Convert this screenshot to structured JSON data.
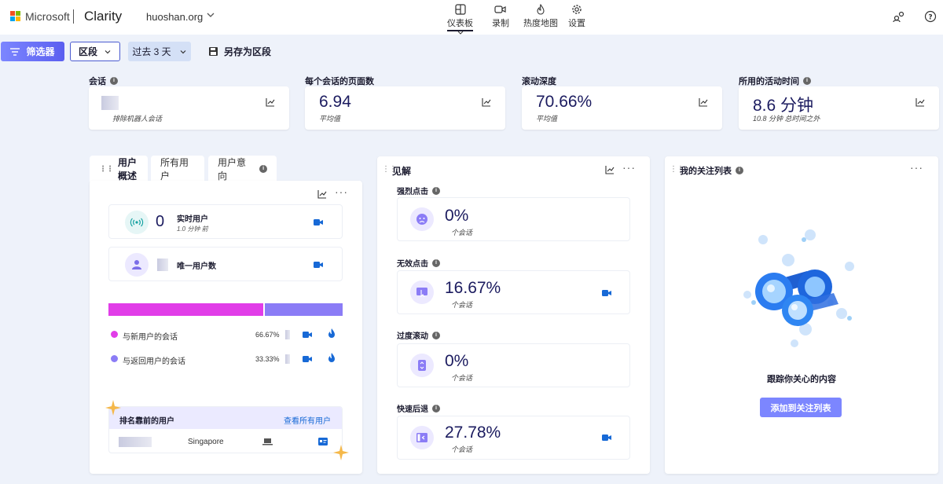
{
  "header": {
    "brand": "Microsoft",
    "product": "Clarity",
    "site": "huoshan.org",
    "nav": [
      {
        "label": "仪表板",
        "icon": "dashboard-icon"
      },
      {
        "label": "录制",
        "icon": "video-icon"
      },
      {
        "label": "热度地图",
        "icon": "flame-icon"
      },
      {
        "label": "设置",
        "icon": "gear-icon"
      }
    ],
    "logo_colors": [
      "#f25022",
      "#7fba00",
      "#00a4ef",
      "#ffb900"
    ]
  },
  "toolbar": {
    "filter_label": "筛选器",
    "segment_label": "区段",
    "range_label": "过去 3 天",
    "save_label": "另存为区段"
  },
  "metrics": [
    {
      "label": "会话",
      "value": "",
      "sub": "排除机器人会话"
    },
    {
      "label": "每个会话的页面数",
      "value": "6.94",
      "sub": "平均值"
    },
    {
      "label": "滚动深度",
      "value": "70.66%",
      "sub": "平均值"
    },
    {
      "label": "所用的活动时间",
      "value": "8.6 分钟",
      "sub": "10.8 分钟 总时间之外"
    }
  ],
  "users_panel": {
    "tabs": [
      "用户概述",
      "所有用户",
      "用户意向"
    ],
    "live_count": "0",
    "live_label": "实时用户",
    "live_time": "1.0 分钟 前",
    "unique_label": "唯一用户数",
    "new_label": "与新用户的会话",
    "new_pct": "66.67%",
    "new_share": 66.67,
    "return_label": "与返回用户的会话",
    "return_pct": "33.33%",
    "top_label": "排名靠前的用户",
    "view_all": "查看所有用户",
    "top_country": "Singapore",
    "colors": {
      "new": "#e13de8",
      "return": "#8b7cf6"
    }
  },
  "insights": {
    "title": "见解",
    "items": [
      {
        "label": "强烈点击",
        "value": "0%",
        "sub": "个会话",
        "icon": "angry-face-icon"
      },
      {
        "label": "无效点击",
        "value": "16.67%",
        "sub": "个会话",
        "icon": "dead-click-icon"
      },
      {
        "label": "过度滚动",
        "value": "0%",
        "sub": "个会话",
        "icon": "scroll-icon"
      },
      {
        "label": "快速后退",
        "value": "27.78%",
        "sub": "个会话",
        "icon": "back-icon"
      }
    ]
  },
  "watchlist": {
    "title": "我的关注列表",
    "message": "跟踪你关心的内容",
    "button": "添加到关注列表"
  }
}
